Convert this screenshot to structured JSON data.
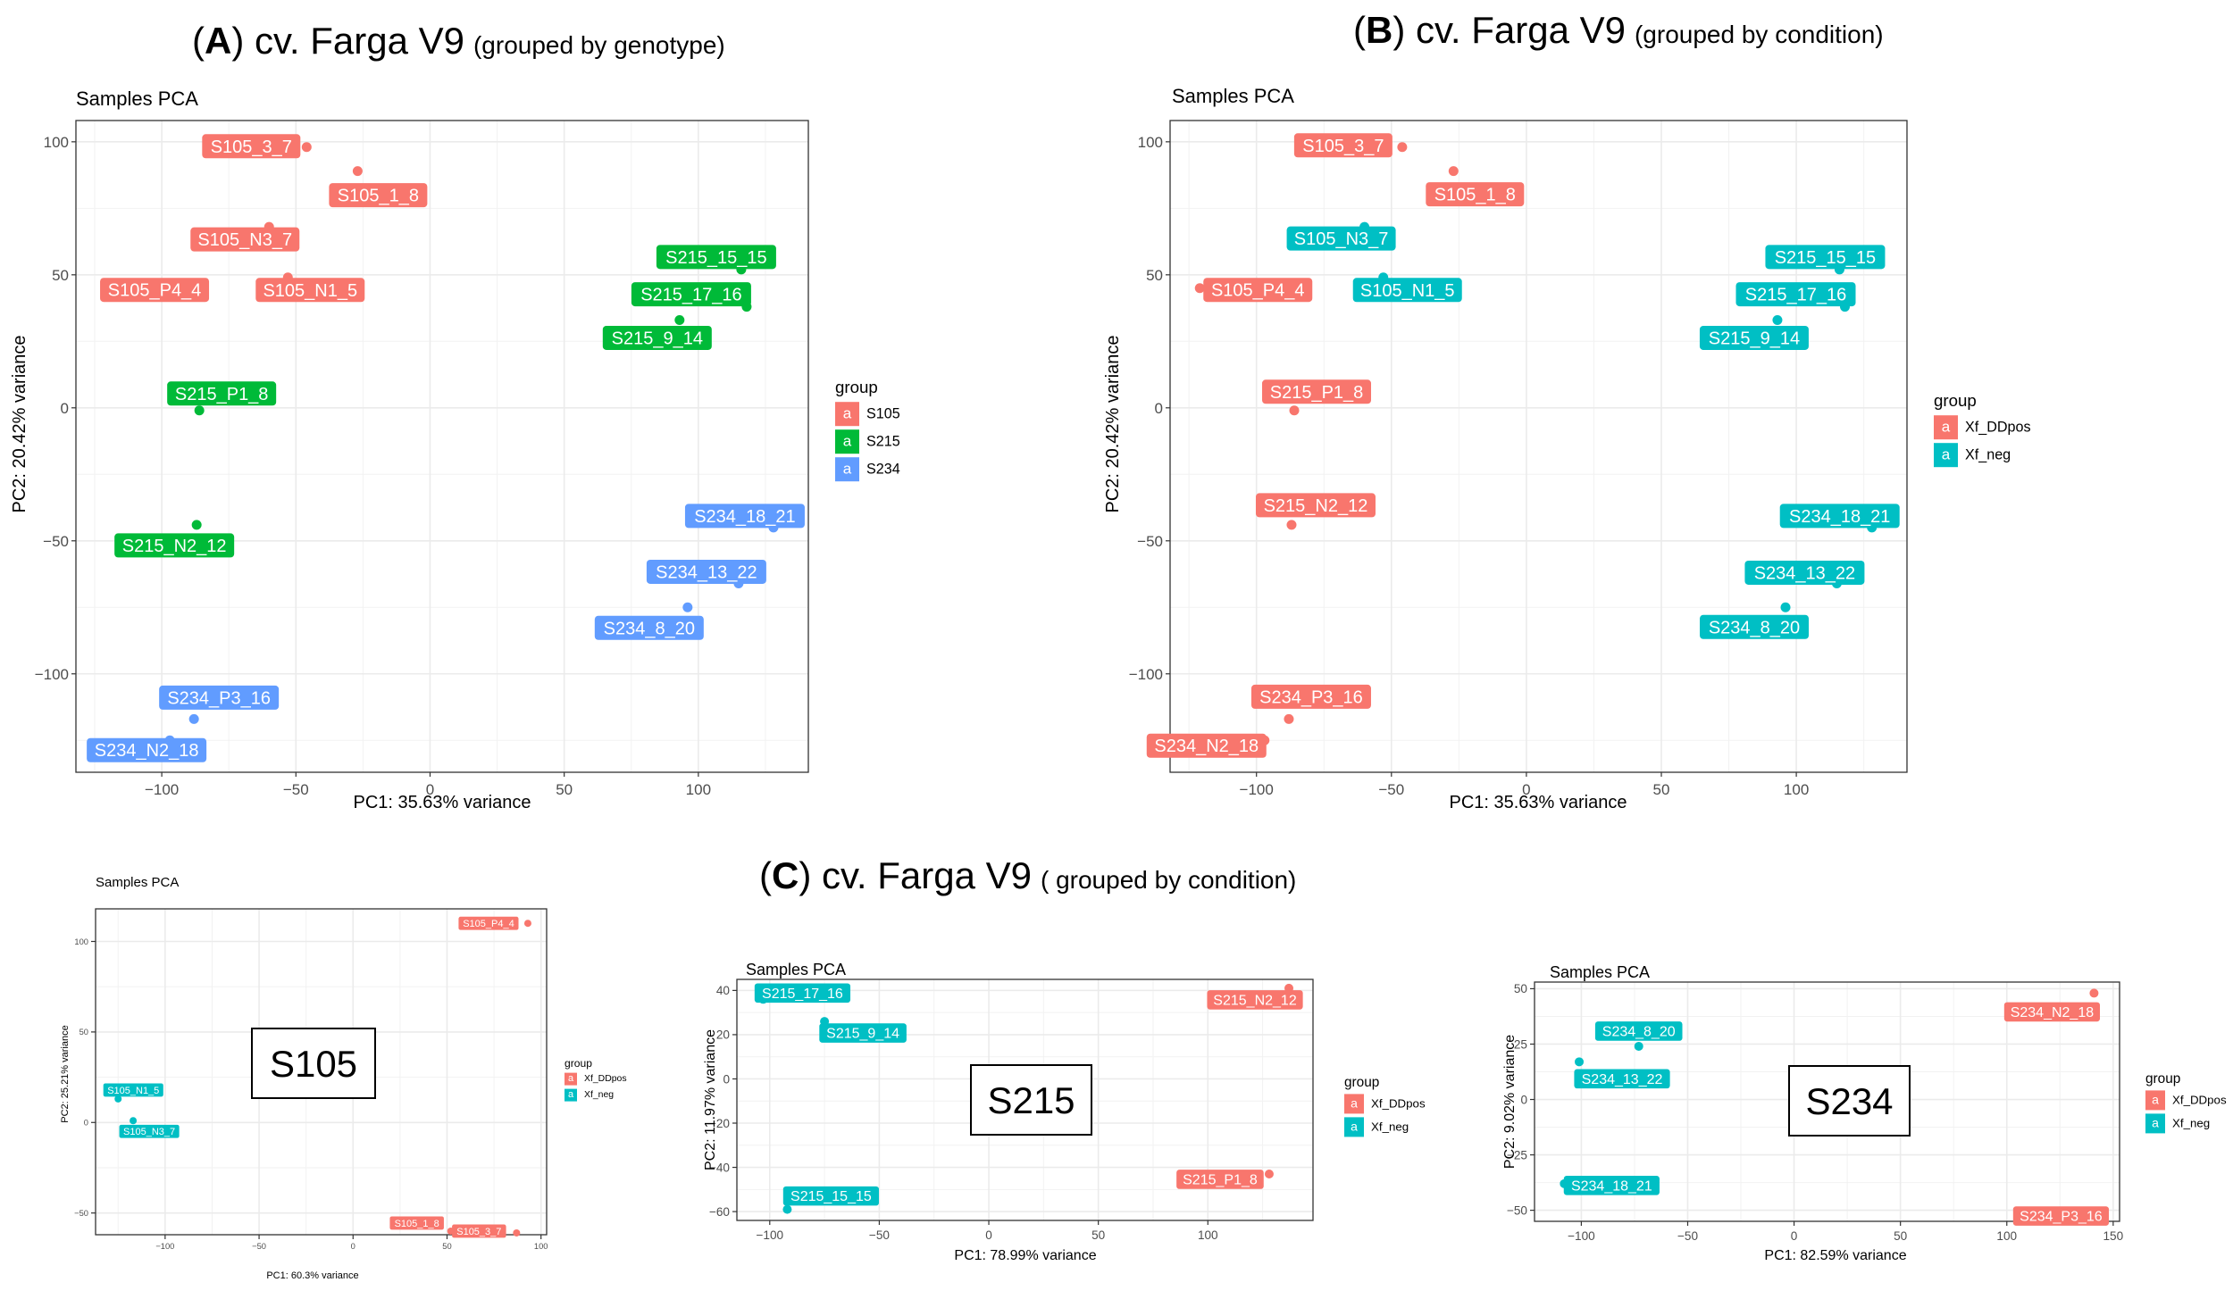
{
  "colors": {
    "S105": "#F8766D",
    "S215": "#00BA38",
    "S234": "#619CFF",
    "Xf_DDpos": "#F8766D",
    "Xf_neg": "#00BFC4",
    "grid": "#EBEBEB",
    "axis_text": "#4D4D4D"
  },
  "titles": {
    "A": {
      "letter": "A",
      "main": "cv. Farga V9",
      "sub": "(grouped by genotype)"
    },
    "B": {
      "letter": "B",
      "main": "cv. Farga V9",
      "sub": "(grouped by condition)"
    },
    "C": {
      "letter": "C",
      "main": "cv. Farga V9",
      "sub": "( grouped by condition)"
    }
  },
  "chart_data": [
    {
      "id": "A",
      "type": "scatter",
      "title": "Samples PCA",
      "xlabel": "PC1: 35.63% variance",
      "ylabel": "PC2: 20.42% variance",
      "xlim": [
        -132,
        141
      ],
      "ylim": [
        -137,
        108
      ],
      "xticks": [
        -100,
        -50,
        0,
        50,
        100
      ],
      "yticks": [
        -100,
        -50,
        0,
        50,
        100
      ],
      "legend_title": "group",
      "legend_key": "a",
      "legend": [
        "S105",
        "S215",
        "S234"
      ],
      "points": [
        {
          "label": "S105_3_7",
          "x": -46,
          "y": 98,
          "group": "S105"
        },
        {
          "label": "S105_1_8",
          "x": -27,
          "y": 89,
          "group": "S105"
        },
        {
          "label": "S105_N3_7",
          "x": -60,
          "y": 68,
          "group": "S105"
        },
        {
          "label": "S105_P4_4",
          "x": -121,
          "y": 45,
          "group": "S105"
        },
        {
          "label": "S105_N1_5",
          "x": -53,
          "y": 49,
          "group": "S105"
        },
        {
          "label": "S215_15_15",
          "x": 116,
          "y": 52,
          "group": "S215"
        },
        {
          "label": "S215_17_16",
          "x": 118,
          "y": 38,
          "group": "S215"
        },
        {
          "label": "S215_9_14",
          "x": 93,
          "y": 33,
          "group": "S215"
        },
        {
          "label": "S215_P1_8",
          "x": -86,
          "y": -1,
          "group": "S215"
        },
        {
          "label": "S215_N2_12",
          "x": -87,
          "y": -44,
          "group": "S215"
        },
        {
          "label": "S234_18_21",
          "x": 128,
          "y": -45,
          "group": "S234"
        },
        {
          "label": "S234_13_22",
          "x": 115,
          "y": -66,
          "group": "S234"
        },
        {
          "label": "S234_8_20",
          "x": 96,
          "y": -75,
          "group": "S234"
        },
        {
          "label": "S234_P3_16",
          "x": -88,
          "y": -117,
          "group": "S234"
        },
        {
          "label": "S234_N2_18",
          "x": -97,
          "y": -125,
          "group": "S234"
        }
      ]
    },
    {
      "id": "B",
      "type": "scatter",
      "title": "Samples PCA",
      "xlabel": "PC1: 35.63% variance",
      "ylabel": "PC2: 20.42% variance",
      "xlim": [
        -132,
        141
      ],
      "ylim": [
        -137,
        108
      ],
      "xticks": [
        -100,
        -50,
        0,
        50,
        100
      ],
      "yticks": [
        -100,
        -50,
        0,
        50,
        100
      ],
      "legend_title": "group",
      "legend_key": "a",
      "legend": [
        "Xf_DDpos",
        "Xf_neg"
      ],
      "points": [
        {
          "label": "S105_3_7",
          "x": -46,
          "y": 98,
          "group": "Xf_DDpos"
        },
        {
          "label": "S105_1_8",
          "x": -27,
          "y": 89,
          "group": "Xf_DDpos"
        },
        {
          "label": "S105_N3_7",
          "x": -60,
          "y": 68,
          "group": "Xf_neg"
        },
        {
          "label": "S105_P4_4",
          "x": -121,
          "y": 45,
          "group": "Xf_DDpos"
        },
        {
          "label": "S105_N1_5",
          "x": -53,
          "y": 49,
          "group": "Xf_neg"
        },
        {
          "label": "S215_15_15",
          "x": 116,
          "y": 52,
          "group": "Xf_neg"
        },
        {
          "label": "S215_17_16",
          "x": 118,
          "y": 38,
          "group": "Xf_neg"
        },
        {
          "label": "S215_9_14",
          "x": 93,
          "y": 33,
          "group": "Xf_neg"
        },
        {
          "label": "S215_P1_8",
          "x": -86,
          "y": -1,
          "group": "Xf_DDpos"
        },
        {
          "label": "S215_N2_12",
          "x": -87,
          "y": -44,
          "group": "Xf_DDpos"
        },
        {
          "label": "S234_18_21",
          "x": 128,
          "y": -45,
          "group": "Xf_neg"
        },
        {
          "label": "S234_13_22",
          "x": 115,
          "y": -66,
          "group": "Xf_neg"
        },
        {
          "label": "S234_8_20",
          "x": 96,
          "y": -75,
          "group": "Xf_neg"
        },
        {
          "label": "S234_P3_16",
          "x": -88,
          "y": -117,
          "group": "Xf_DDpos"
        },
        {
          "label": "S234_N2_18",
          "x": -97,
          "y": -125,
          "group": "Xf_DDpos"
        }
      ]
    },
    {
      "id": "C1",
      "type": "scatter",
      "title": "Samples PCA",
      "badge": "S105",
      "xlabel": "PC1: 60.3% variance",
      "ylabel": "PC2: 25.21% variance",
      "xlim": [
        -137,
        103
      ],
      "ylim": [
        -62,
        118
      ],
      "xticks": [
        -100,
        -50,
        0,
        50,
        100
      ],
      "yticks": [
        -50,
        0,
        50,
        100
      ],
      "legend_title": "group",
      "legend_key": "a",
      "legend": [
        "Xf_DDpos",
        "Xf_neg"
      ],
      "points": [
        {
          "label": "S105_P4_4",
          "x": 93,
          "y": 110,
          "group": "Xf_DDpos"
        },
        {
          "label": "S105_N1_5",
          "x": -125,
          "y": 13,
          "group": "Xf_neg"
        },
        {
          "label": "S105_N3_7",
          "x": -117,
          "y": 1,
          "group": "Xf_neg"
        },
        {
          "label": "S105_1_8",
          "x": 52,
          "y": -60,
          "group": "Xf_DDpos"
        },
        {
          "label": "S105_3_7",
          "x": 87,
          "y": -61,
          "group": "Xf_DDpos"
        }
      ]
    },
    {
      "id": "C2",
      "type": "scatter",
      "title": "Samples PCA",
      "badge": "S215",
      "xlabel": "PC1: 78.99% variance",
      "ylabel": "PC2: 11.97% variance",
      "xlim": [
        -115,
        148
      ],
      "ylim": [
        -64,
        45
      ],
      "xticks": [
        -100,
        -50,
        0,
        50,
        100
      ],
      "yticks": [
        -60,
        -40,
        -20,
        0,
        20,
        40
      ],
      "legend_title": "group",
      "legend_key": "a",
      "legend": [
        "Xf_DDpos",
        "Xf_neg"
      ],
      "points": [
        {
          "label": "S215_17_16",
          "x": -103,
          "y": 36,
          "group": "Xf_neg"
        },
        {
          "label": "S215_9_14",
          "x": -75,
          "y": 26,
          "group": "Xf_neg"
        },
        {
          "label": "S215_N2_12",
          "x": 137,
          "y": 41,
          "group": "Xf_DDpos"
        },
        {
          "label": "S215_P1_8",
          "x": 128,
          "y": -43,
          "group": "Xf_DDpos"
        },
        {
          "label": "S215_15_15",
          "x": -92,
          "y": -59,
          "group": "Xf_neg"
        }
      ]
    },
    {
      "id": "C3",
      "type": "scatter",
      "title": "Samples PCA",
      "badge": "S234",
      "xlabel": "PC1: 82.59% variance",
      "ylabel": "PC2: 9.02% variance",
      "xlim": [
        -122,
        153
      ],
      "ylim": [
        -55,
        53
      ],
      "xticks": [
        -100,
        -50,
        0,
        50,
        100,
        150
      ],
      "yticks": [
        -50,
        -25,
        0,
        25,
        50
      ],
      "legend_title": "group",
      "legend_key": "a",
      "legend": [
        "Xf_DDpos",
        "Xf_neg"
      ],
      "points": [
        {
          "label": "S234_8_20",
          "x": -73,
          "y": 24,
          "group": "Xf_neg"
        },
        {
          "label": "S234_13_22",
          "x": -101,
          "y": 17,
          "group": "Xf_neg"
        },
        {
          "label": "S234_N2_18",
          "x": 141,
          "y": 48,
          "group": "Xf_DDpos"
        },
        {
          "label": "S234_18_21",
          "x": -108,
          "y": -38,
          "group": "Xf_neg"
        },
        {
          "label": "S234_P3_16",
          "x": 141,
          "y": -51,
          "group": "Xf_DDpos"
        }
      ]
    }
  ]
}
